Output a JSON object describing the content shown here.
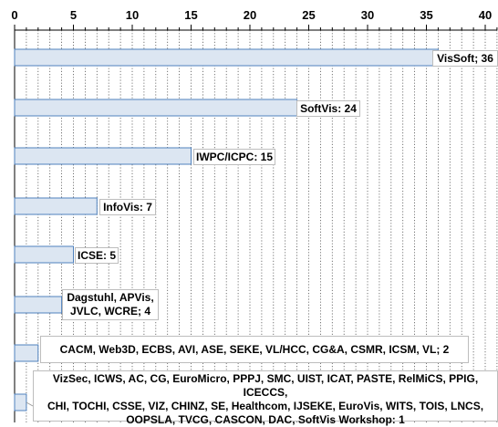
{
  "chart_data": {
    "type": "bar",
    "orientation": "horizontal",
    "xlim": [
      0,
      41
    ],
    "x_ticks": [
      0,
      5,
      10,
      15,
      20,
      25,
      30,
      35,
      40
    ],
    "grid": "vertical dotted gridlines",
    "bar_color": "#dce6f2",
    "bar_edge_color": "#4f81bd",
    "categories": [
      "VisSoft",
      "SoftVis",
      "IWPC/ICPC",
      "InfoVis",
      "ICSE",
      "Dagstuhl, APVis, JVLC, WCRE",
      "CACM, Web3D, ECBS, AVI, ASE, SEKE, VL/HCC, CG&A, CSMR, ICSM, VL",
      "VizSec, ICWS, AC, CG, EuroMicro, PPPJ, SMC, UIST, ICAT, PASTE, RelMiCS, PPIG, ICECCS, CHI, TOCHI, CSSE, VIZ, CHINZ, SE, Healthcom, IJSEKE, EuroVis, WITS, TOIS, LNCS, OOPSLA, TVCG, CASCON, DAC, SoftVis Workshop"
    ],
    "values": [
      36,
      24,
      15,
      7,
      5,
      4,
      2,
      1
    ],
    "data_labels": [
      "VisSoft; 36",
      "SoftVis: 24",
      "IWPC/ICPC: 15",
      "InfoVis: 7",
      "ICSE: 5",
      "Dagstuhl, APVis,\nJVLC, WCRE; 4",
      "CACM, Web3D, ECBS, AVI, ASE, SEKE, VL/HCC, CG&A, CSMR, ICSM, VL; 2",
      "VizSec, ICWS, AC, CG, EuroMicro, PPPJ, SMC, UIST, ICAT, PASTE, RelMiCS, PPIG, ICECCS,\nCHI, TOCHI, CSSE, VIZ, CHINZ, SE, Healthcom, IJSEKE, EuroVis, WITS, TOIS, LNCS,\nOOPSLA, TVCG, CASCON, DAC, SoftVis Workshop: 1"
    ]
  }
}
